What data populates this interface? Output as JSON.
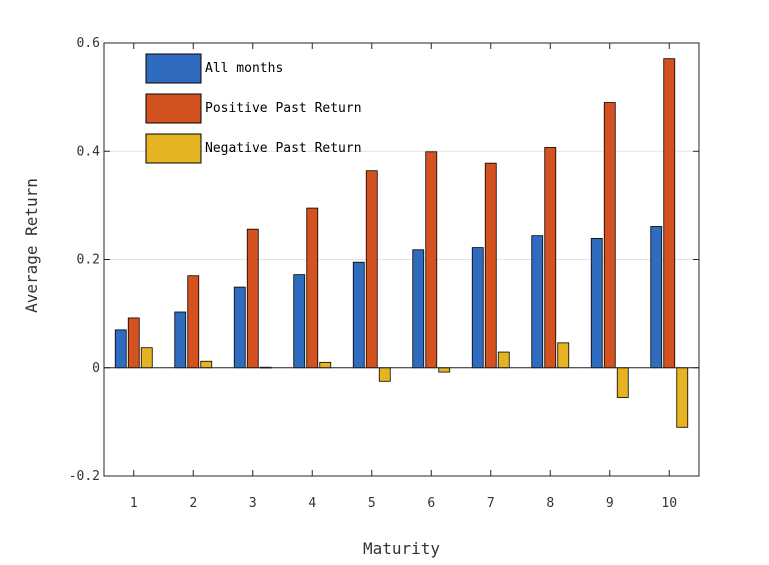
{
  "chart_data": {
    "type": "bar",
    "xlabel": "Maturity",
    "ylabel": "Average Return",
    "categories": [
      "1",
      "2",
      "3",
      "4",
      "5",
      "6",
      "7",
      "8",
      "9",
      "10"
    ],
    "ylim": [
      -0.2,
      0.6
    ],
    "yticks": [
      -0.2,
      0,
      0.2,
      0.4,
      0.6
    ],
    "ytick_labels": [
      "-0.2",
      "0",
      "0.2",
      "0.4",
      "0.6"
    ],
    "grid": true,
    "legend_position": "top-left",
    "series": [
      {
        "name": "All months",
        "color": "#2f6bbf",
        "values": [
          0.07,
          0.103,
          0.149,
          0.172,
          0.195,
          0.218,
          0.222,
          0.244,
          0.239,
          0.261
        ]
      },
      {
        "name": "Positive Past Return",
        "color": "#d4521f",
        "values": [
          0.092,
          0.17,
          0.256,
          0.295,
          0.364,
          0.399,
          0.378,
          0.407,
          0.49,
          0.571
        ]
      },
      {
        "name": "Negative Past Return",
        "color": "#e6b422",
        "values": [
          0.037,
          0.012,
          0.001,
          0.01,
          -0.025,
          -0.008,
          0.029,
          0.046,
          -0.055,
          -0.11
        ]
      }
    ]
  }
}
